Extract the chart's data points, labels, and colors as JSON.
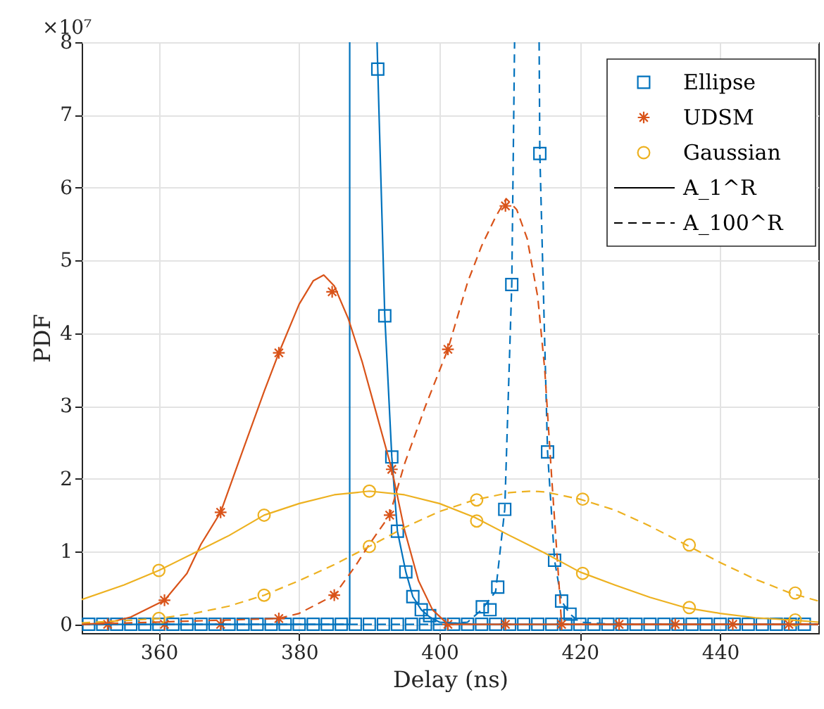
{
  "chart_data": {
    "type": "line",
    "xlabel": "Delay (ns)",
    "ylabel": "PDF",
    "xlim": [
      349,
      454
    ],
    "xticks": [
      360,
      380,
      400,
      420,
      440
    ],
    "ylim": [
      -0.12,
      8
    ],
    "yticks": [
      0,
      1,
      2,
      3,
      4,
      5,
      6,
      7,
      8
    ],
    "grid": true,
    "legend": "top right",
    "annotations": [
      "×10⁷",
      "A_1^R",
      "A_100^R"
    ],
    "series": [
      {
        "name": "Ellipse",
        "type": "scatter",
        "marker": "square",
        "color": "#0072bd",
        "x": [
          391.2,
          392.2,
          393.2,
          394,
          395.2,
          396.2,
          397.4,
          398.6,
          406.1,
          407.2,
          408.3,
          409.3,
          410.3,
          414.3,
          415.4,
          416.4,
          417.4,
          418.6,
          350,
          352,
          354,
          356,
          358,
          360,
          362,
          364,
          366,
          368,
          370,
          372,
          374,
          376,
          378,
          380,
          382,
          384,
          386,
          388,
          390,
          392,
          394,
          396,
          398,
          400,
          402,
          404,
          406,
          408,
          410,
          412,
          414,
          416,
          418,
          420,
          422,
          424,
          426,
          428,
          430,
          432,
          434,
          436,
          438,
          440,
          442,
          444,
          446,
          448,
          450,
          452
        ],
        "values": [
          7.63,
          4.24,
          2.3,
          1.28,
          0.72,
          0.38,
          0.2,
          0.12,
          0.24,
          0.2,
          0.51,
          1.58,
          4.67,
          6.47,
          2.37,
          0.88,
          0.32,
          0.14,
          0,
          0,
          0,
          0,
          0,
          0,
          0,
          0,
          0,
          0,
          0,
          0,
          0,
          0,
          0,
          0,
          0,
          0,
          0,
          0,
          0,
          0,
          0,
          0,
          0,
          0,
          0,
          0,
          0,
          0,
          0,
          0,
          0,
          0,
          0,
          0,
          0,
          0,
          0,
          0,
          0,
          0,
          0,
          0,
          0,
          0,
          0,
          0,
          0,
          0,
          0,
          0
        ]
      },
      {
        "name": "UDSM",
        "type": "scatter",
        "marker": "cross",
        "color": "#d95319",
        "x": [
          352.7,
          360.8,
          368.8,
          377.1,
          384.7,
          393.2,
          401.2,
          409.4,
          417.4,
          425.6,
          433.6,
          441.8,
          449.8,
          360.8,
          368.8,
          377.1,
          385,
          392.9,
          401.2,
          409.4
        ],
        "values": [
          0,
          0.33,
          1.54,
          3.73,
          4.57,
          2.13,
          0,
          0,
          0,
          0,
          0,
          0,
          0,
          0,
          0,
          0.08,
          0.4,
          1.5,
          3.78,
          5.75
        ]
      },
      {
        "name": "Gaussian",
        "type": "scatter",
        "marker": "circle",
        "color": "#edb120",
        "x": [
          360,
          375,
          390,
          405.3,
          420.4,
          435.6,
          450.7,
          360,
          375,
          390,
          405.3,
          420.4,
          435.6,
          450.7
        ],
        "values": [
          0.74,
          1.5,
          1.83,
          1.42,
          0.7,
          0.23,
          0.06,
          0.08,
          0.4,
          1.07,
          1.71,
          1.72,
          1.09,
          0.43
        ]
      },
      {
        "line_style": "solid",
        "marker": "none",
        "color": "#0072bd",
        "x": [
          349,
          387.2,
          387.2
        ],
        "values": [
          0,
          0,
          8
        ]
      },
      {
        "line_style": "solid",
        "marker": "none",
        "color": "#0072bd",
        "x": [
          391.1,
          391.2,
          392.2,
          393.2,
          394,
          395.2,
          396.2,
          397.4,
          398.6,
          400,
          405,
          454
        ],
        "values": [
          8,
          7.63,
          4.24,
          2.3,
          1.28,
          0.72,
          0.38,
          0.2,
          0.1,
          0.03,
          0,
          0
        ]
      },
      {
        "line_style": "dashed",
        "marker": "none",
        "color": "#0072bd",
        "x": [
          349,
          400,
          404,
          406,
          408,
          409.3,
          410.3,
          410.7
        ],
        "values": [
          0,
          0,
          0.03,
          0.2,
          0.45,
          1.58,
          4.67,
          8
        ]
      },
      {
        "line_style": "dashed",
        "marker": "none",
        "color": "#0072bd",
        "x": [
          414.2,
          414.3,
          415.4,
          416.4,
          417.4,
          418.6,
          420,
          425,
          454
        ],
        "values": [
          8,
          6.47,
          2.37,
          0.88,
          0.32,
          0.14,
          0.03,
          0,
          0
        ]
      },
      {
        "line_style": "solid",
        "marker": "none",
        "color": "#d95319",
        "x": [
          349,
          352.7,
          356,
          360.8,
          364,
          366,
          368.8,
          372,
          375,
          377.1,
          380,
          382,
          383.5,
          385,
          387,
          389,
          391,
          393.2,
          395,
          397,
          399,
          401.2,
          454
        ],
        "values": [
          0,
          0.02,
          0.1,
          0.33,
          0.7,
          1.1,
          1.54,
          2.4,
          3.2,
          3.73,
          4.4,
          4.72,
          4.8,
          4.65,
          4.2,
          3.6,
          2.9,
          2.13,
          1.3,
          0.6,
          0.2,
          0,
          0
        ]
      },
      {
        "line_style": "dashed",
        "marker": "none",
        "color": "#d95319",
        "x": [
          349,
          377.1,
          380,
          385,
          388,
          390,
          392.9,
          395,
          398,
          401.2,
          404,
          406,
          408,
          409.5,
          411,
          412.5,
          414,
          415,
          416,
          417,
          417.4,
          454
        ],
        "values": [
          0,
          0.08,
          0.15,
          0.4,
          0.8,
          1.1,
          1.5,
          2.2,
          3.0,
          3.78,
          4.7,
          5.2,
          5.6,
          5.85,
          5.7,
          5.3,
          4.5,
          3.5,
          2.0,
          0.6,
          0,
          0
        ]
      },
      {
        "line_style": "solid",
        "marker": "none",
        "color": "#edb120",
        "x": [
          349,
          355,
          360,
          365,
          370,
          375,
          380,
          385,
          390,
          395,
          400,
          405,
          410,
          415,
          420,
          425,
          430,
          435,
          440,
          445,
          450,
          454
        ],
        "values": [
          0.34,
          0.54,
          0.74,
          0.98,
          1.22,
          1.5,
          1.66,
          1.78,
          1.83,
          1.78,
          1.66,
          1.47,
          1.22,
          0.98,
          0.72,
          0.54,
          0.37,
          0.23,
          0.15,
          0.09,
          0.06,
          0.03
        ]
      },
      {
        "line_style": "dashed",
        "marker": "none",
        "color": "#edb120",
        "x": [
          349,
          355,
          360,
          365,
          370,
          375,
          380,
          385,
          390,
          395,
          400,
          405,
          410,
          413,
          415,
          420,
          425,
          430,
          435,
          440,
          445,
          450,
          454
        ],
        "values": [
          0.02,
          0.05,
          0.08,
          0.15,
          0.25,
          0.4,
          0.6,
          0.82,
          1.07,
          1.33,
          1.55,
          1.71,
          1.81,
          1.83,
          1.82,
          1.72,
          1.57,
          1.35,
          1.1,
          0.85,
          0.62,
          0.43,
          0.32
        ]
      }
    ]
  }
}
